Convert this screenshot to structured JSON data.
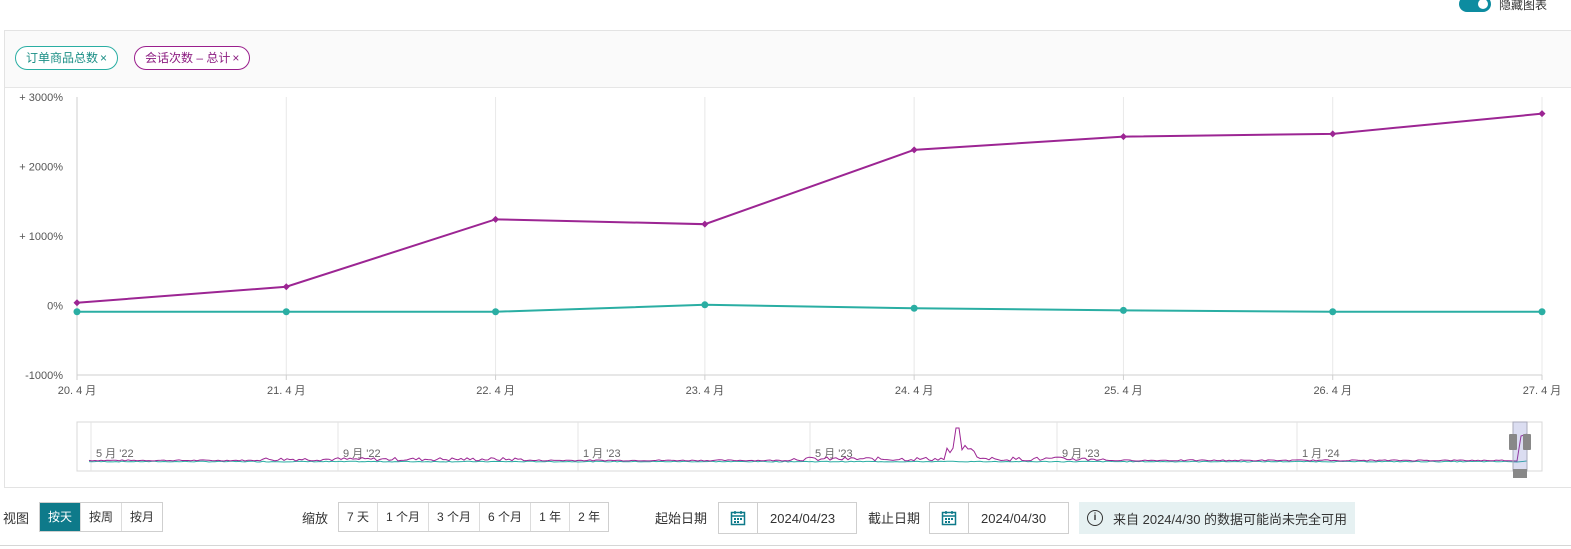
{
  "toggle": {
    "label": "隐藏图表",
    "on": true
  },
  "pills": [
    {
      "label": "订单商品总数",
      "close": "×",
      "color": "#2aaea3"
    },
    {
      "label": "会话次数 – 总计",
      "close": "×",
      "color": "#9a1f8d"
    }
  ],
  "chart_data": {
    "type": "line",
    "categories": [
      "20. 4 月",
      "21. 4 月",
      "22. 4 月",
      "23. 4 月",
      "24. 4 月",
      "25. 4 月",
      "26. 4 月",
      "27. 4 月"
    ],
    "yticks": [
      {
        "value": 3000,
        "label": "+ 3000%"
      },
      {
        "value": 2000,
        "label": "+ 2000%"
      },
      {
        "value": 1000,
        "label": "+ 1000%"
      },
      {
        "value": 0,
        "label": "0%"
      },
      {
        "value": -1000,
        "label": "-1000%"
      }
    ],
    "ylim": [
      -1000,
      3000
    ],
    "grid": true,
    "series": [
      {
        "color": "#9c2593",
        "marker": "diamond",
        "values": [
          40,
          270,
          1240,
          1170,
          2240,
          2430,
          2470,
          2760
        ]
      },
      {
        "color": "#2aaea3",
        "marker": "circle",
        "values": [
          -90,
          -90,
          -90,
          10,
          -40,
          -70,
          -90,
          -90
        ]
      }
    ]
  },
  "navigator": {
    "labels": [
      "5 月 '22",
      "9 月 '22",
      "1 月 '23",
      "5 月 '23",
      "9 月 '23",
      "1 月 '24"
    ]
  },
  "controls": {
    "view_label": "视图",
    "view_buttons": [
      "按天",
      "按周",
      "按月"
    ],
    "view_active": 0,
    "zoom_label": "缩放",
    "zoom_buttons": [
      "7 天",
      "1 个月",
      "3 个月",
      "6 个月",
      "1 年",
      "2 年"
    ],
    "start_label": "起始日期",
    "start_date": "2024/04/23",
    "end_label": "截止日期",
    "end_date": "2024/04/30",
    "notice": "来自 2024/4/30 的数据可能尚未完全可用"
  },
  "colors": {
    "teal": "#2aaea3",
    "purple": "#9c2593",
    "accent": "#0e7a8a"
  }
}
